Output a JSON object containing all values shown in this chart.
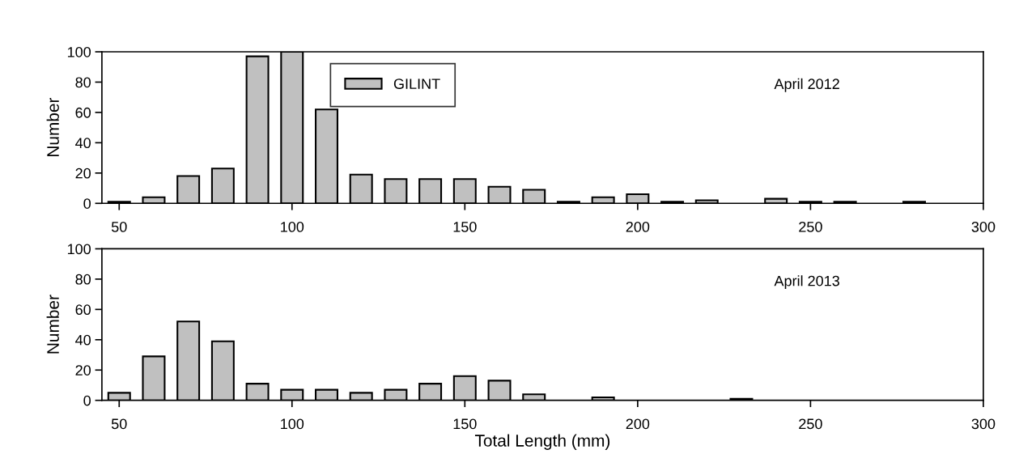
{
  "chart_data": [
    {
      "type": "bar",
      "xlim": [
        45,
        300
      ],
      "xticks": [
        50,
        100,
        150,
        200,
        250,
        300
      ],
      "ylim": [
        0,
        100
      ],
      "yticks": [
        0,
        20,
        40,
        60,
        80,
        100
      ],
      "ylabel": "Number",
      "annotations": [
        "April 2012"
      ],
      "legend": "top",
      "grid": false,
      "series": [
        {
          "name": "GILINT",
          "color": "#c0c0c0",
          "x": [
            50,
            60,
            70,
            80,
            90,
            100,
            110,
            120,
            130,
            140,
            150,
            160,
            170,
            180,
            190,
            200,
            210,
            220,
            240,
            250,
            260,
            280
          ],
          "values": [
            1,
            4,
            18,
            23,
            97,
            100,
            62,
            19,
            16,
            16,
            16,
            11,
            9,
            1,
            4,
            6,
            1,
            2,
            3,
            1,
            1,
            1
          ]
        }
      ]
    },
    {
      "type": "bar",
      "xlim": [
        45,
        300
      ],
      "xticks": [
        50,
        100,
        150,
        200,
        250,
        300
      ],
      "ylim": [
        0,
        100
      ],
      "yticks": [
        0,
        20,
        40,
        60,
        80,
        100
      ],
      "ylabel": "Number",
      "xlabel": "Total Length (mm)",
      "annotations": [
        "April 2013"
      ],
      "legend": false,
      "grid": false,
      "series": [
        {
          "color": "#c0c0c0",
          "x": [
            50,
            60,
            70,
            80,
            90,
            100,
            110,
            120,
            130,
            140,
            150,
            160,
            170,
            190,
            230
          ],
          "values": [
            5,
            29,
            52,
            39,
            11,
            7,
            7,
            5,
            7,
            11,
            16,
            13,
            4,
            2,
            1
          ]
        }
      ]
    }
  ]
}
